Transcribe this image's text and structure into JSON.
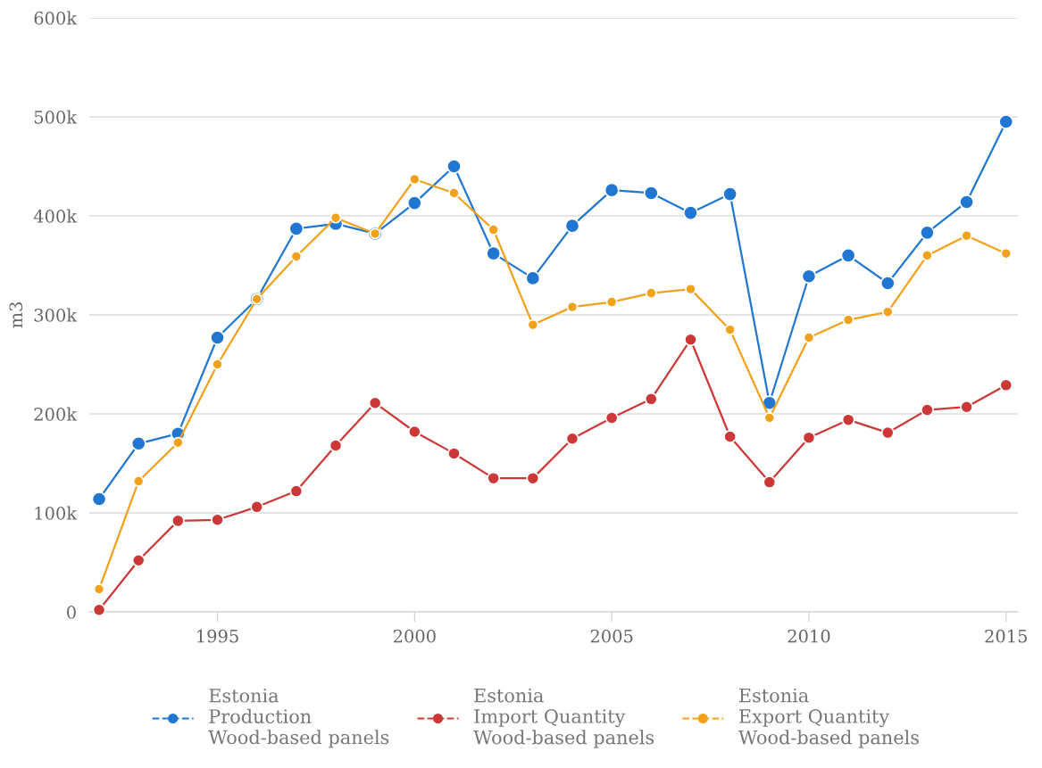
{
  "chart_data": {
    "type": "line",
    "ylabel": "m3",
    "x": [
      1992,
      1993,
      1994,
      1995,
      1996,
      1997,
      1998,
      1999,
      2000,
      2001,
      2002,
      2003,
      2004,
      2005,
      2006,
      2007,
      2008,
      2009,
      2010,
      2011,
      2012,
      2013,
      2014,
      2015
    ],
    "series": [
      {
        "name": "Estonia\nProduction\nWood-based panels",
        "color": "#2176d2",
        "values": [
          114000,
          170000,
          180000,
          277000,
          316000,
          387000,
          392000,
          382000,
          413000,
          450000,
          362000,
          337000,
          390000,
          426000,
          423000,
          403000,
          422000,
          211000,
          339000,
          360000,
          332000,
          383000,
          414000,
          495000
        ]
      },
      {
        "name": "Estonia\nImport Quantity\nWood-based panels",
        "color": "#cc3838",
        "values": [
          2000,
          52000,
          92000,
          93000,
          106000,
          122000,
          168000,
          211000,
          182000,
          160000,
          135000,
          135000,
          175000,
          196000,
          215000,
          275000,
          177000,
          131000,
          176000,
          194000,
          181000,
          204000,
          207000,
          229000
        ]
      },
      {
        "name": "Estonia\nExport Quantity\nWood-based panels",
        "color": "#f2a11a",
        "values": [
          23000,
          132000,
          171000,
          250000,
          316000,
          359000,
          398000,
          382000,
          437000,
          423000,
          386000,
          290000,
          308000,
          313000,
          322000,
          326000,
          285000,
          196000,
          277000,
          295000,
          303000,
          360000,
          380000,
          362000
        ]
      }
    ],
    "xlim": [
      1991.75,
      2015.3
    ],
    "xticks": [
      1995,
      2000,
      2005,
      2010,
      2015
    ],
    "ylim": [
      0,
      600000
    ],
    "yticks": [
      0,
      {
        "value": 100000,
        "label": "100k"
      },
      {
        "value": 200000,
        "label": "200k"
      },
      {
        "value": 300000,
        "label": "300k"
      },
      {
        "value": 400000,
        "label": "400k"
      },
      {
        "value": 500000,
        "label": "500k"
      },
      {
        "value": 600000,
        "label": "600k"
      }
    ],
    "grid": "y",
    "legend": "bottom",
    "marker": "circle",
    "line_style": "solid"
  }
}
